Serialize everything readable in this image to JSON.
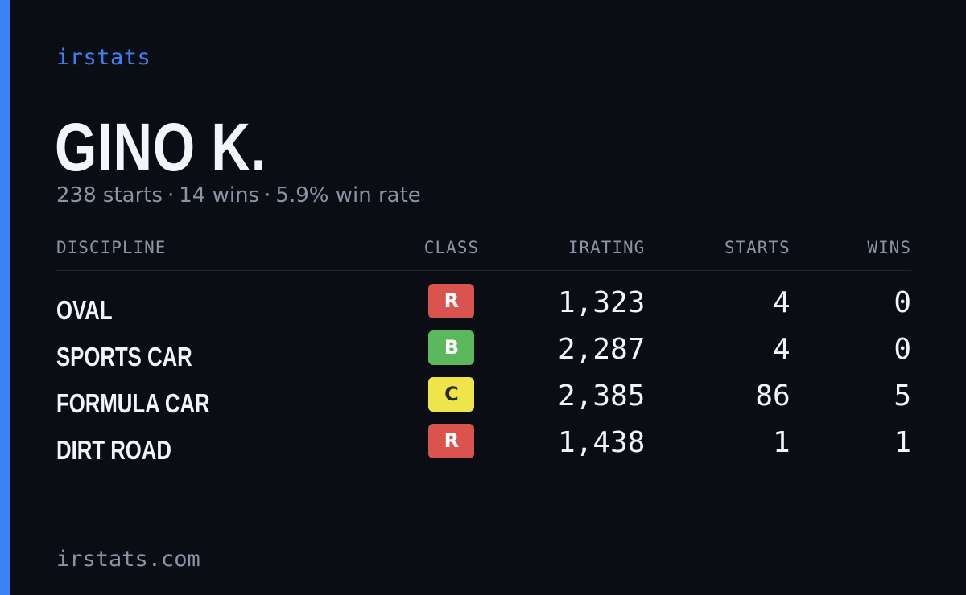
{
  "brand": "irstats",
  "driver": {
    "name": "GINO K.",
    "starts": "238 starts",
    "wins": "14 wins",
    "win_rate": "5.9% win rate",
    "separator": "·"
  },
  "table": {
    "headers": {
      "discipline": "DISCIPLINE",
      "class": "CLASS",
      "irating": "IRATING",
      "starts": "STARTS",
      "wins": "WINS"
    },
    "rows": [
      {
        "discipline": "OVAL",
        "class": "R",
        "class_bg": "#d9534f",
        "class_fg": "#ffffff",
        "irating": "1,323",
        "starts": "4",
        "wins": "0"
      },
      {
        "discipline": "SPORTS CAR",
        "class": "B",
        "class_bg": "#5cb85c",
        "class_fg": "#ffffff",
        "irating": "2,287",
        "starts": "4",
        "wins": "0"
      },
      {
        "discipline": "FORMULA CAR",
        "class": "C",
        "class_bg": "#eee54a",
        "class_fg": "#2a2a2a",
        "irating": "2,385",
        "starts": "86",
        "wins": "5"
      },
      {
        "discipline": "DIRT ROAD",
        "class": "R",
        "class_bg": "#d9534f",
        "class_fg": "#ffffff",
        "irating": "1,438",
        "starts": "1",
        "wins": "1"
      }
    ]
  },
  "footer": {
    "url": "irstats.com"
  },
  "colors": {
    "background": "#0a0d14",
    "accent": "#3b82f6",
    "text_primary": "#f4f5f8",
    "text_muted": "#8b94a4"
  }
}
